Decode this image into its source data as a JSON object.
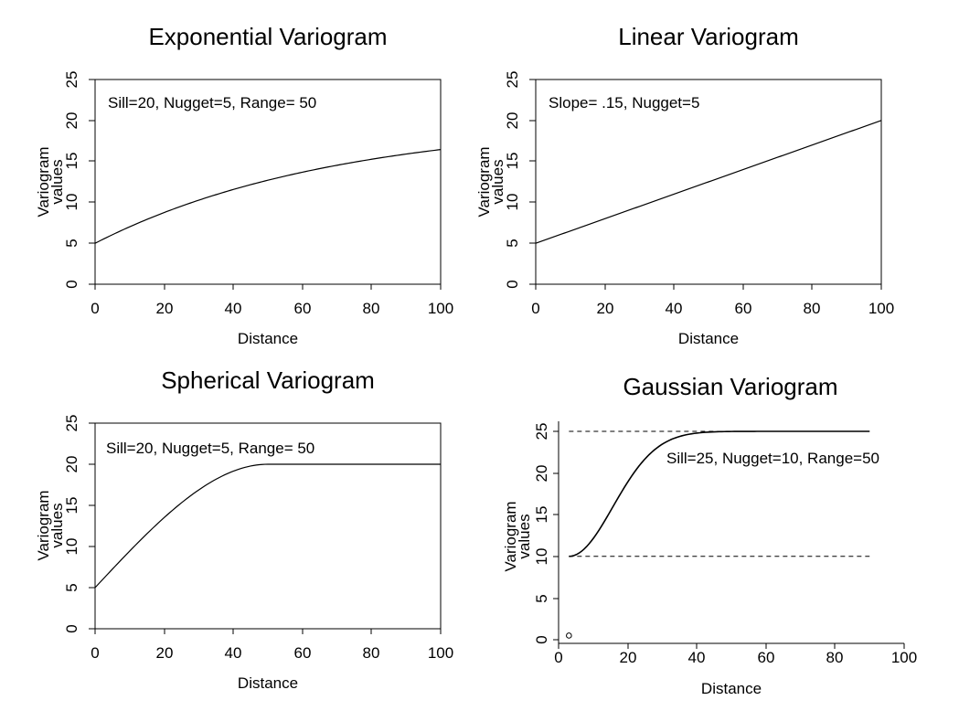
{
  "charts": [
    {
      "id": "exponential",
      "title": "Exponential Variogram",
      "annotation": "Sill=20, Nugget=5, Range= 50",
      "xlabel": "Distance",
      "ylabel_lines": [
        "Variogram",
        "values"
      ],
      "x_ticks": [
        "0",
        "20",
        "40",
        "60",
        "80",
        "100"
      ],
      "y_ticks": [
        "0",
        "5",
        "10",
        "15",
        "20",
        "25"
      ]
    },
    {
      "id": "linear",
      "title": "Linear Variogram",
      "annotation": "Slope= .15, Nugget=5",
      "xlabel": "Distance",
      "ylabel_lines": [
        "Variogram",
        "values"
      ],
      "x_ticks": [
        "0",
        "20",
        "40",
        "60",
        "80",
        "100"
      ],
      "y_ticks": [
        "0",
        "5",
        "10",
        "15",
        "20",
        "25"
      ]
    },
    {
      "id": "spherical",
      "title": "Spherical Variogram",
      "annotation": "Sill=20, Nugget=5, Range= 50",
      "xlabel": "Distance",
      "ylabel_lines": [
        "Variogram",
        "values"
      ],
      "x_ticks": [
        "0",
        "20",
        "40",
        "60",
        "80",
        "100"
      ],
      "y_ticks": [
        "0",
        "5",
        "10",
        "15",
        "20",
        "25"
      ]
    },
    {
      "id": "gaussian",
      "title": "Gaussian Variogram",
      "annotation": "Sill=25, Nugget=10, Range=50",
      "xlabel": "Distance",
      "ylabel_lines": [
        "Variogram",
        "values"
      ],
      "x_ticks": [
        "0",
        "20",
        "40",
        "60",
        "80",
        "100"
      ],
      "y_ticks": [
        "0",
        "5",
        "10",
        "15",
        "20",
        "25"
      ]
    }
  ],
  "chart_data": [
    {
      "type": "line",
      "title": "Exponential Variogram",
      "xlabel": "Distance",
      "ylabel": "Variogram values",
      "xlim": [
        0,
        100
      ],
      "ylim": [
        0,
        25
      ],
      "boxed": true,
      "model": {
        "kind": "exponential",
        "nugget": 5,
        "sill": 20,
        "range": 50
      },
      "x": [
        0,
        10,
        20,
        30,
        40,
        50,
        60,
        70,
        80,
        90,
        100
      ],
      "y": [
        5.0,
        7.7,
        9.9,
        11.7,
        13.2,
        14.5,
        15.5,
        16.4,
        17.0,
        17.6,
        18.0
      ]
    },
    {
      "type": "line",
      "title": "Linear Variogram",
      "xlabel": "Distance",
      "ylabel": "Variogram values",
      "xlim": [
        0,
        100
      ],
      "ylim": [
        0,
        25
      ],
      "boxed": true,
      "model": {
        "kind": "linear",
        "nugget": 5,
        "slope": 0.15
      },
      "x": [
        0,
        100
      ],
      "y": [
        5,
        20
      ]
    },
    {
      "type": "line",
      "title": "Spherical Variogram",
      "xlabel": "Distance",
      "ylabel": "Variogram values",
      "xlim": [
        0,
        100
      ],
      "ylim": [
        0,
        25
      ],
      "boxed": true,
      "model": {
        "kind": "spherical",
        "nugget": 5,
        "sill": 20,
        "range": 50
      },
      "x": [
        0,
        10,
        20,
        30,
        40,
        50,
        60,
        80,
        100
      ],
      "y": [
        5.0,
        9.5,
        13.6,
        17.0,
        19.3,
        20.0,
        20.0,
        20.0,
        20.0
      ]
    },
    {
      "type": "line",
      "title": "Gaussian Variogram",
      "xlabel": "Distance",
      "ylabel": "Variogram values",
      "xlim": [
        0,
        100
      ],
      "ylim": [
        0,
        25
      ],
      "boxed": false,
      "model": {
        "kind": "gaussian",
        "nugget": 10,
        "sill": 25,
        "range": 50
      },
      "x": [
        3,
        5,
        10,
        15,
        20,
        25,
        30,
        35,
        40,
        50,
        60,
        70,
        80,
        90
      ],
      "y": [
        10.0,
        10.4,
        12.5,
        15.5,
        19.0,
        21.9,
        23.6,
        24.5,
        24.9,
        25.0,
        25.0,
        25.0,
        25.0,
        25.0
      ],
      "reference_lines": [
        25,
        10
      ],
      "reference_x_range": [
        3,
        90
      ],
      "marker_point": {
        "x": 3,
        "y": 0.5
      }
    }
  ]
}
